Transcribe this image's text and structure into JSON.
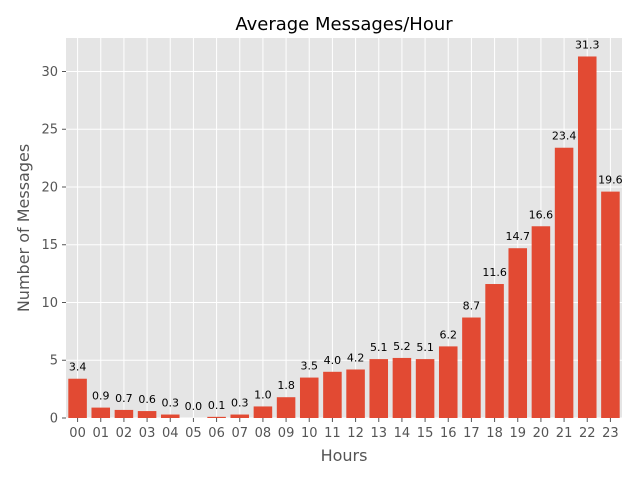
{
  "chart_data": {
    "type": "bar",
    "title": "Average Messages/Hour",
    "xlabel": "Hours",
    "ylabel": "Number of Messages",
    "categories": [
      "00",
      "01",
      "02",
      "03",
      "04",
      "05",
      "06",
      "07",
      "08",
      "09",
      "10",
      "11",
      "12",
      "13",
      "14",
      "15",
      "16",
      "17",
      "18",
      "19",
      "20",
      "21",
      "22",
      "23"
    ],
    "values": [
      3.4,
      0.9,
      0.7,
      0.6,
      0.3,
      0.0,
      0.1,
      0.3,
      1.0,
      1.8,
      3.5,
      4.0,
      4.2,
      5.1,
      5.2,
      5.1,
      6.2,
      8.7,
      11.6,
      14.7,
      16.6,
      23.4,
      31.3,
      19.6
    ],
    "value_labels": [
      "3.4",
      "0.9",
      "0.7",
      "0.6",
      "0.3",
      "0.0",
      "0.1",
      "0.3",
      "1.0",
      "1.8",
      "3.5",
      "4.0",
      "4.2",
      "5.1",
      "5.2",
      "5.1",
      "6.2",
      "8.7",
      "11.6",
      "14.7",
      "16.6",
      "23.4",
      "31.3",
      "19.6"
    ],
    "ylim": [
      0,
      32.9
    ],
    "yticks": [
      0,
      5,
      10,
      15,
      20,
      25,
      30
    ],
    "ytick_labels": [
      "0",
      "5",
      "10",
      "15",
      "20",
      "25",
      "30"
    ],
    "grid": true,
    "colors": {
      "bar": "#E24A33",
      "plot_background": "#E5E5E5",
      "grid": "#FFFFFF",
      "text": "#555555",
      "title": "#000000"
    }
  }
}
